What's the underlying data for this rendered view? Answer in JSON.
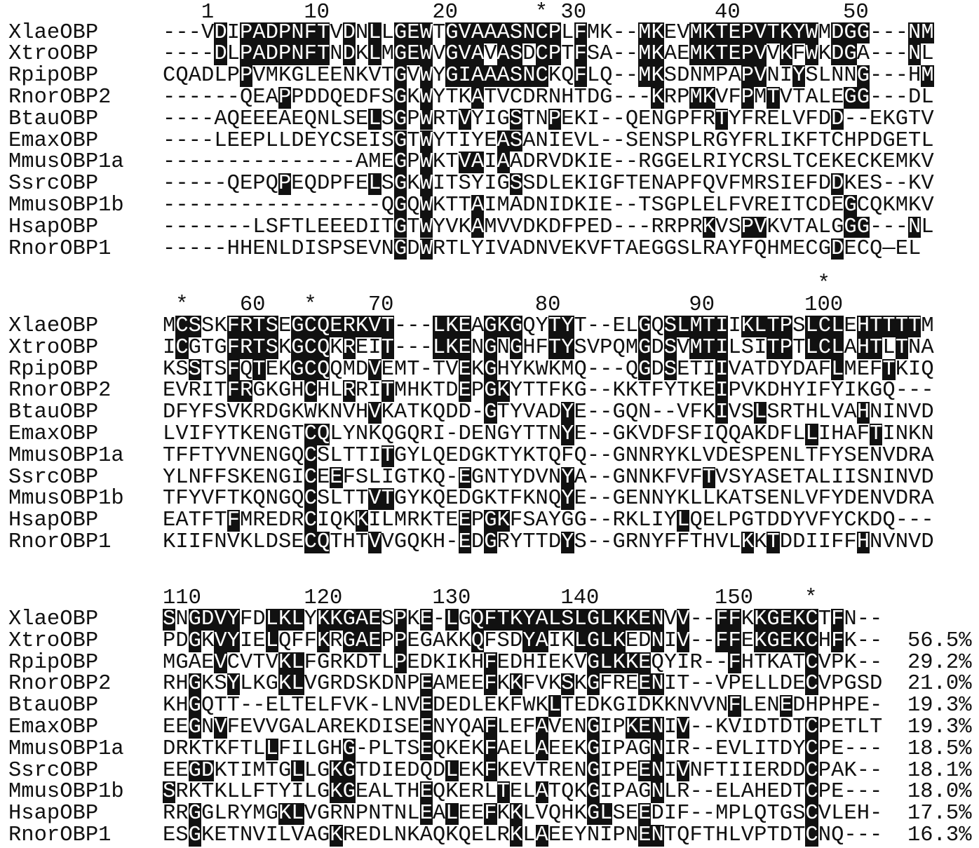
{
  "colors": {
    "shade": "#111111",
    "shaded_text": "#ffffff",
    "text": "#111111"
  },
  "blocks": [
    {
      "marker_line": "",
      "ruler": "   1       10        20      * 30          40        50",
      "rows": [
        {
          "name": "XlaeOBP",
          "seq": "---VDIPADPNFTVDNLLGEWTGVAAASNCPLFMK--MKEVMKTEPVTKYWMDGG---NM",
          "shaded": [
            4,
            6,
            7,
            8,
            9,
            10,
            11,
            12,
            14,
            16,
            18,
            19,
            20,
            22,
            23,
            24,
            25,
            26,
            27,
            28,
            29,
            30,
            32,
            37,
            38,
            41,
            42,
            43,
            44,
            45,
            46,
            47,
            48,
            49,
            50,
            52,
            53,
            54,
            58,
            59
          ],
          "identity": ""
        },
        {
          "name": "XtroOBP",
          "seq": "----DLPADPNFTNDKLMGEWVGVAVASDCPTFSA--MKAEMKTEPVVKFWKDGA---NL",
          "shaded": [
            4,
            6,
            7,
            8,
            9,
            10,
            11,
            12,
            14,
            16,
            18,
            19,
            20,
            22,
            23,
            24,
            26,
            27,
            29,
            30,
            32,
            37,
            38,
            41,
            42,
            43,
            44,
            45,
            46,
            48,
            50,
            52,
            53,
            58
          ],
          "identity": ""
        },
        {
          "name": "RpipOBP",
          "seq": "CQADLPPVMKGLEENKVTGVWYGIAAASNCKQFLQ--MKSDNMPAPVNIYSLNNG---HM",
          "shaded": [
            6,
            18,
            20,
            22,
            23,
            24,
            25,
            26,
            27,
            28,
            29,
            32,
            37,
            38,
            45,
            46,
            49,
            54,
            59
          ],
          "identity": ""
        },
        {
          "name": "RnorOBP2",
          "seq": "------QEAPPDDQEDFSGKWYTKATVCDRNHTDG---KRPMKVFPMTVTALEGG---DL",
          "shaded": [
            9,
            18,
            20,
            24,
            38,
            41,
            42,
            45,
            47,
            53,
            54
          ],
          "identity": ""
        },
        {
          "name": "BtauOBP",
          "seq": "----AQEEEAEQNLSELSGPWRTVYIGSTNPEKI--QENGPFRTYFRELVFDD--EKGTV",
          "shaded": [
            16,
            18,
            20,
            23,
            27,
            30,
            43,
            52
          ],
          "identity": ""
        },
        {
          "name": "EmaxOBP",
          "seq": "----LEEPLLDEYCSEISGTWYTIYEASANIEVL--SENSPLRGYFRLIKFTCHPDGETL",
          "shaded": [
            18,
            20,
            26,
            27
          ],
          "identity": ""
        },
        {
          "name": "MmusOBP1a",
          "seq": "---------------AMEGPWKTVAIAADRVDKIE--RGGELRIYCRSLTCEKECKEMKV",
          "shaded": [
            18,
            20,
            23,
            24,
            26
          ],
          "identity": ""
        },
        {
          "name": "SsrcOBP",
          "seq": "-----QEPQPEQDPFELSGKWITSYIGSSDLEKIGFTENAPFQVFMRSIEFDDKES--KV",
          "shaded": [
            9,
            16,
            18,
            20,
            27,
            52
          ],
          "identity": ""
        },
        {
          "name": "MmusOBP1b",
          "seq": "-----------------QGQWKTTAIMADNIDKIE--TSGPLELFVREITCDEGCQKMKV",
          "shaded": [
            18,
            20,
            24,
            53
          ],
          "identity": ""
        },
        {
          "name": "HsapOBP",
          "seq": "-------LSFTLEEEDITGTWYVKAMVVDKDFPED---RRPRKVSPVKVTALGGG---NL",
          "shaded": [
            18,
            20,
            24,
            42,
            45,
            46,
            53,
            54,
            58
          ],
          "identity": ""
        },
        {
          "name": "RnorOBP1",
          "seq": "-----HHENLDISPSEVNGDWRTLYIVADNVEKVFTAEGGSLRAYFQHMECGDECQ—EL",
          "shaded": [
            18,
            20,
            52
          ],
          "identity": ""
        }
      ]
    },
    {
      "marker_line": "                                                   *",
      "ruler": " *    60   *    70           80          90       100",
      "rows": [
        {
          "name": "XlaeOBP",
          "seq": "MCSSKFRTSEGCQERKVT---LKEAGKGQYTYT--ELGQSLMTIIKLTPSLCLEHTTTTM",
          "shaded": [
            1,
            2,
            5,
            6,
            7,
            8,
            10,
            11,
            12,
            13,
            14,
            15,
            16,
            17,
            21,
            22,
            23,
            25,
            26,
            27,
            30,
            31,
            37,
            39,
            40,
            41,
            42,
            43,
            45,
            46,
            47,
            48,
            50,
            51,
            52,
            54,
            55,
            56,
            57,
            58
          ],
          "identity": ""
        },
        {
          "name": "XtroOBP",
          "seq": "ICGTGFRTSKGCQKREIT---LKENGNGHFTYSVPQMGDSVMTILSITPTLCLAHTLTNA",
          "shaded": [
            1,
            5,
            6,
            7,
            8,
            10,
            11,
            12,
            14,
            17,
            21,
            22,
            23,
            25,
            27,
            30,
            31,
            37,
            39,
            41,
            42,
            43,
            47,
            48,
            50,
            51,
            52,
            54,
            55,
            57
          ],
          "identity": ""
        },
        {
          "name": "RpipOBP",
          "seq": "KSSTSFQTEKGCQQMDVEMT-TVEKGHYKWKMQ---QGDSETIIVATDYDAFLMEFTKIQ",
          "shaded": [
            2,
            5,
            7,
            10,
            11,
            12,
            16,
            23,
            25,
            37,
            39,
            43,
            52,
            56
          ],
          "identity": ""
        },
        {
          "name": "RnorOBP2",
          "seq": "EVRITFRGKGHCHLRRITMHKTDEPGKYTTFKG--KKTFYTKEIPVKDHYIFYIKGQ---",
          "shaded": [
            5,
            6,
            11,
            14,
            17,
            23,
            25,
            26,
            43
          ],
          "identity": ""
        },
        {
          "name": "BtauOBP",
          "seq": "DFYFSVKRDGKWKNVHVKATKQDD-GTYVADYE--GQN--VFKIVSLSRTHLVAHNINVD",
          "shaded": [
            16,
            25,
            31,
            43,
            46,
            54
          ],
          "identity": ""
        },
        {
          "name": "EmaxOBP",
          "seq": "LVIFYTKENGTCQLYNKQGQRI-DENGYTTNYE--GKVDFSFIQQAKDFLLIHAFTINKN",
          "shaded": [
            11,
            12,
            31,
            50,
            55
          ],
          "identity": ""
        },
        {
          "name": "MmusOBP1a",
          "seq": "TFFTYVNENGQCSLTTITGYLQEDGKTYKTQFQ--GNNRYKLVDESPENLTFYSENVDRA",
          "shaded": [
            11,
            17
          ],
          "identity": ""
        },
        {
          "name": "SsrcOBP",
          "seq": "YLNFFSKENGICEEFSLIGTKQ-EGNTYDVNYA--GNNKFVFTVSYASETALIISNINVD",
          "shaded": [
            11,
            13,
            23,
            31,
            42
          ],
          "identity": ""
        },
        {
          "name": "MmusOBP1b",
          "seq": "TFYVFTKQNGQCSLTTVTGYKQEDGKTFKNQYE--GENNYKLLKATSENLVFYDENVDRA",
          "shaded": [
            11,
            16,
            17,
            31
          ],
          "identity": ""
        },
        {
          "name": "HsapOBP",
          "seq": "EATFTFMREDRCIQKKILMRKTEEPGKFSAYGG--RKLIYLQELPGTDDYVFYCKDQ---",
          "shaded": [
            5,
            11,
            15,
            23,
            25,
            26,
            40
          ],
          "identity": ""
        },
        {
          "name": "RnorOBP1",
          "seq": "KIIFNVKLDSECQTHTVVGQKH-EDGRYTTDYS--GRNYFFTHVLKKTDDIIFFHNVNVD",
          "shaded": [
            11,
            12,
            16,
            23,
            25,
            31,
            45,
            47,
            54
          ],
          "identity": ""
        }
      ]
    },
    {
      "marker_line": "",
      "ruler": "110        120       130       140         150    *",
      "rows": [
        {
          "name": "XlaeOBP",
          "seq": "SNGDVYFDLKLYKKGAESPKE-LGQFTKYALSLGLKKENVV--FFKKGEKCTFN--",
          "shaded": [
            0,
            2,
            3,
            4,
            5,
            8,
            9,
            10,
            12,
            13,
            14,
            15,
            16,
            18,
            20,
            22,
            24,
            25,
            26,
            27,
            28,
            29,
            30,
            31,
            32,
            33,
            34,
            35,
            36,
            37,
            38,
            40,
            43,
            44,
            46,
            47,
            48,
            49,
            50,
            52
          ],
          "identity": ""
        },
        {
          "name": "XtroOBP",
          "seq": "PDGKVYIELQFFKRGAEPPEGAKKQFSDYAIKLGLKEDNIV--FFEKGEKCHFK--",
          "shaded": [
            2,
            4,
            5,
            8,
            12,
            14,
            15,
            16,
            18,
            24,
            28,
            29,
            32,
            33,
            34,
            35,
            38,
            40,
            43,
            44,
            46,
            47,
            48,
            49,
            50,
            52
          ],
          "identity": "56.5%"
        },
        {
          "name": "RpipOBP",
          "seq": "MGAEVCVTVKLFGRKDTLPEDKIKHFEDHIEKVGLKKEQYIR--FHTKATCVPK--",
          "shaded": [
            4,
            9,
            10,
            18,
            25,
            33,
            34,
            35,
            36,
            37,
            44,
            50
          ],
          "identity": "29.2%"
        },
        {
          "name": "RnorOBP2",
          "seq": "RHGKSYLKGKLVGRDSKDNPEAMEEFKKFVKSKGFREENIT--VPELLDECVPGSD",
          "shaded": [
            2,
            5,
            9,
            10,
            20,
            25,
            27,
            31,
            33,
            37,
            38,
            50
          ],
          "identity": "21.0%"
        },
        {
          "name": "BtauOBP",
          "seq": "KHGQTT--ELTELFVK-LNVEDEDLEKFWKLTEDKGIDKKNVVNFLENEDHPHPE-",
          "shaded": [
            2,
            20,
            30,
            44,
            48
          ],
          "identity": "19.3%"
        },
        {
          "name": "EmaxOBP",
          "seq": "EEGNVFEVVGALAREKDISEENYQAFLEFAVENGIPKENIV--KVIDTDTCPETLT",
          "shaded": [
            2,
            4,
            20,
            25,
            29,
            33,
            36,
            37,
            38,
            40,
            50
          ],
          "identity": "19.3%"
        },
        {
          "name": "MmusOBP1a",
          "seq": "DRKTKFTLLFILGHG-PLTSEQKEKFAELAEEKGIPAGNIR--EVLITDYCPE---",
          "shaded": [
            8,
            14,
            20,
            25,
            29,
            33,
            38,
            50
          ],
          "identity": "18.5%"
        },
        {
          "name": "SsrcOBP",
          "seq": "EEGDKTIMTGLLGKGTDIEDQDLEKFKEVTRENGIPEENIVNFTIIERDDCPAK--",
          "shaded": [
            2,
            3,
            10,
            13,
            14,
            22,
            25,
            33,
            37,
            38,
            40,
            50
          ],
          "identity": "18.1%"
        },
        {
          "name": "MmusOBP1b",
          "seq": "SRKTKLLFTYILGKGEALTHEQKERLTELATQKGIPAGNLR--ELAHEDTCPE---",
          "shaded": [
            0,
            13,
            14,
            20,
            26,
            29,
            33,
            38,
            50
          ],
          "identity": "18.0%"
        },
        {
          "name": "HsapOBP",
          "seq": "RRGGLRYMGKLVGRNPNTNLEALEEFKKLVQHKGLSEEDIF--MPLQTGSCVLEH-",
          "shaded": [
            2,
            9,
            10,
            20,
            22,
            25,
            27,
            33,
            34,
            37,
            50
          ],
          "identity": "17.5%"
        },
        {
          "name": "RnorOBP1",
          "seq": "ESGKETNVILVAGKREDLNKAQKQELRKLAEEYNIPNENTQFTHLVPTDTCNQ---",
          "shaded": [
            2,
            13,
            27,
            29,
            37,
            38,
            50
          ],
          "identity": "16.3%"
        }
      ]
    }
  ]
}
